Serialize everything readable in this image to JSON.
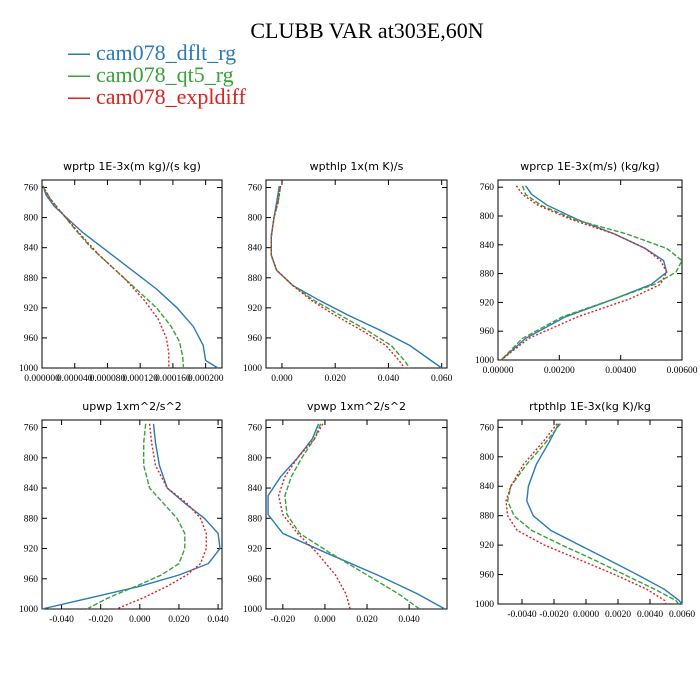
{
  "title": "CLUBB VAR at303E,60N",
  "legend": [
    {
      "label": "cam078_dflt_rg",
      "color": "#2a7ab8"
    },
    {
      "label": "cam078_qt5_rg",
      "color": "#3aa13a"
    },
    {
      "label": "cam078_expldiff",
      "color": "#e02020"
    }
  ],
  "chart_data": [
    {
      "type": "line",
      "title": "wprtp  1E-3x(m kg)/(s kg)",
      "xlim": [
        0.0,
        0.00022
      ],
      "ylim": [
        750,
        1000
      ],
      "xticks": [
        0.0,
        4e-05,
        8e-05,
        0.00012,
        0.00016,
        0.0002
      ],
      "xticklabels": [
        "0.000000",
        "0.000040",
        "0.000080",
        "0.000120",
        "0.000160",
        "0.000200"
      ],
      "yticks": [
        760,
        800,
        840,
        880,
        920,
        960,
        1000
      ],
      "series": [
        {
          "name": "cam078_dflt_rg",
          "x": [
            1.5e-06,
            5e-06,
            1.5e-05,
            3e-05,
            5e-05,
            8e-05,
            0.00011,
            0.00014,
            0.000165,
            0.000185,
            0.000197,
            0.0002,
            0.000215
          ],
          "y": [
            758,
            770,
            785,
            800,
            820,
            845,
            870,
            895,
            920,
            945,
            970,
            990,
            1000
          ]
        },
        {
          "name": "cam078_qt5_rg",
          "x": [
            1e-06,
            1e-05,
            2.5e-05,
            4e-05,
            6e-05,
            9e-05,
            0.000115,
            0.00014,
            0.000158,
            0.000168,
            0.000172,
            0.000173
          ],
          "y": [
            758,
            775,
            795,
            815,
            840,
            870,
            895,
            920,
            945,
            965,
            985,
            1000
          ]
        },
        {
          "name": "cam078_expldiff",
          "x": [
            1e-06,
            1e-05,
            2.5e-05,
            4.5e-05,
            7e-05,
            0.0001,
            0.000125,
            0.000142,
            0.000152,
            0.000155,
            0.000155
          ],
          "y": [
            758,
            775,
            795,
            820,
            850,
            880,
            910,
            935,
            960,
            980,
            1000
          ]
        }
      ]
    },
    {
      "type": "line",
      "title": "wpthlp  1x(m K)/s",
      "xlim": [
        -0.006,
        0.062
      ],
      "ylim": [
        750,
        1000
      ],
      "xticks": [
        0.0,
        0.02,
        0.04,
        0.06
      ],
      "xticklabels": [
        "0.000",
        "0.020",
        "0.040",
        "0.060"
      ],
      "yticks": [
        760,
        800,
        840,
        880,
        920,
        960,
        1000
      ],
      "series": [
        {
          "name": "cam078_dflt_rg",
          "x": [
            -0.001,
            -0.002,
            -0.003,
            -0.004,
            -0.004,
            -0.002,
            0.004,
            0.014,
            0.025,
            0.037,
            0.048,
            0.056,
            0.06
          ],
          "y": [
            758,
            780,
            800,
            825,
            850,
            870,
            890,
            910,
            930,
            950,
            970,
            990,
            1000
          ]
        },
        {
          "name": "cam078_qt5_rg",
          "x": [
            -0.0005,
            -0.0015,
            -0.003,
            -0.004,
            -0.004,
            -0.002,
            0.004,
            0.012,
            0.022,
            0.032,
            0.041,
            0.046,
            0.048
          ],
          "y": [
            758,
            780,
            800,
            825,
            850,
            870,
            890,
            910,
            930,
            950,
            970,
            990,
            1000
          ]
        },
        {
          "name": "cam078_expldiff",
          "x": [
            -0.0005,
            -0.0015,
            -0.003,
            -0.004,
            -0.004,
            -0.002,
            0.004,
            0.011,
            0.02,
            0.03,
            0.039,
            0.044,
            0.046
          ],
          "y": [
            758,
            780,
            800,
            825,
            850,
            870,
            890,
            910,
            930,
            950,
            970,
            990,
            1000
          ]
        }
      ]
    },
    {
      "type": "line",
      "title": "wprcp  1E-3x(m/s) (kg/kg)",
      "xlim": [
        0.0,
        0.006
      ],
      "ylim": [
        750,
        1000
      ],
      "xticks": [
        0.0,
        0.002,
        0.004,
        0.006
      ],
      "xticklabels": [
        "0.00000",
        "0.00200",
        "0.00400",
        "0.00600"
      ],
      "yticks": [
        760,
        800,
        840,
        880,
        920,
        960,
        1000
      ],
      "series": [
        {
          "name": "cam078_dflt_rg",
          "x": [
            0.0009,
            0.0011,
            0.0016,
            0.0026,
            0.0038,
            0.0048,
            0.0054,
            0.0055,
            0.005,
            0.0038,
            0.0022,
            0.0009,
            0.0001
          ],
          "y": [
            758,
            770,
            785,
            805,
            825,
            845,
            862,
            878,
            895,
            915,
            940,
            970,
            1000
          ]
        },
        {
          "name": "cam078_qt5_rg",
          "x": [
            0.0008,
            0.0009,
            0.0014,
            0.0025,
            0.0042,
            0.0055,
            0.006,
            0.0058,
            0.0051,
            0.0038,
            0.0021,
            0.0008,
            0.0001
          ],
          "y": [
            758,
            770,
            785,
            805,
            825,
            845,
            862,
            878,
            895,
            915,
            940,
            970,
            1000
          ]
        },
        {
          "name": "cam078_expldiff",
          "x": [
            0.0006,
            0.0008,
            0.0013,
            0.0024,
            0.0038,
            0.0048,
            0.0053,
            0.0055,
            0.0053,
            0.0043,
            0.0026,
            0.001,
            0.0001
          ],
          "y": [
            758,
            770,
            785,
            805,
            825,
            845,
            862,
            878,
            895,
            915,
            940,
            970,
            1000
          ]
        }
      ]
    },
    {
      "type": "line",
      "title": "upwp  1xm^2/s^2",
      "xlim": [
        -0.05,
        0.042
      ],
      "ylim": [
        750,
        1000
      ],
      "xticks": [
        -0.04,
        -0.02,
        0.0,
        0.02,
        0.04
      ],
      "xticklabels": [
        "-0.040",
        "-0.020",
        "0.000",
        "0.020",
        "0.040"
      ],
      "yticks": [
        760,
        800,
        840,
        880,
        920,
        960,
        1000
      ],
      "series": [
        {
          "name": "cam078_dflt_rg",
          "x": [
            0.007,
            0.008,
            0.01,
            0.014,
            0.023,
            0.033,
            0.04,
            0.041,
            0.035,
            0.02,
            0.0,
            -0.025,
            -0.05
          ],
          "y": [
            755,
            780,
            810,
            840,
            860,
            880,
            900,
            920,
            940,
            955,
            970,
            985,
            1000
          ]
        },
        {
          "name": "cam078_qt5_rg",
          "x": [
            0.003,
            0.002,
            0.002,
            0.005,
            0.012,
            0.019,
            0.023,
            0.023,
            0.02,
            0.011,
            -0.002,
            -0.016,
            -0.027
          ],
          "y": [
            755,
            780,
            810,
            840,
            860,
            880,
            900,
            920,
            940,
            955,
            970,
            985,
            1000
          ]
        },
        {
          "name": "cam078_expldiff",
          "x": [
            0.005,
            0.006,
            0.008,
            0.014,
            0.024,
            0.031,
            0.034,
            0.034,
            0.031,
            0.024,
            0.014,
            0.002,
            -0.012
          ],
          "y": [
            755,
            780,
            810,
            840,
            860,
            880,
            900,
            920,
            940,
            955,
            970,
            985,
            1000
          ]
        }
      ]
    },
    {
      "type": "line",
      "title": "vpwp  1xm^2/s^2",
      "xlim": [
        -0.028,
        0.058
      ],
      "ylim": [
        750,
        1000
      ],
      "xticks": [
        -0.02,
        0.0,
        0.02,
        0.04
      ],
      "xticklabels": [
        "-0.020",
        "0.000",
        "0.020",
        "0.040"
      ],
      "yticks": [
        760,
        800,
        840,
        880,
        920,
        960,
        1000
      ],
      "series": [
        {
          "name": "cam078_dflt_rg",
          "x": [
            -0.003,
            -0.006,
            -0.013,
            -0.021,
            -0.027,
            -0.027,
            -0.02,
            0.0,
            0.025,
            0.044,
            0.057
          ],
          "y": [
            755,
            775,
            800,
            825,
            850,
            875,
            900,
            925,
            955,
            980,
            1000
          ]
        },
        {
          "name": "cam078_qt5_rg",
          "x": [
            -0.002,
            -0.005,
            -0.011,
            -0.016,
            -0.019,
            -0.018,
            -0.012,
            0.002,
            0.02,
            0.035,
            0.045
          ],
          "y": [
            755,
            775,
            800,
            825,
            850,
            875,
            900,
            925,
            955,
            980,
            1000
          ]
        },
        {
          "name": "cam078_expldiff",
          "x": [
            -0.001,
            -0.005,
            -0.013,
            -0.019,
            -0.022,
            -0.02,
            -0.013,
            -0.004,
            0.005,
            0.01,
            0.012
          ],
          "y": [
            755,
            775,
            800,
            825,
            850,
            875,
            900,
            925,
            955,
            980,
            1000
          ]
        }
      ]
    },
    {
      "type": "line",
      "title": "rtpthlp  1E-3x(kg K)/kg",
      "xlim": [
        -0.0055,
        0.006
      ],
      "ylim": [
        750,
        1000
      ],
      "xticks": [
        -0.004,
        -0.002,
        0.0,
        0.002,
        0.004,
        0.006
      ],
      "xticklabels": [
        "-0.0040",
        "-0.0020",
        "0.0000",
        "0.0020",
        "0.0040",
        "0.0060"
      ],
      "yticks": [
        760,
        800,
        840,
        880,
        920,
        960,
        1000
      ],
      "series": [
        {
          "name": "cam078_dflt_rg",
          "x": [
            -0.0017,
            -0.0023,
            -0.0031,
            -0.0036,
            -0.0037,
            -0.0033,
            -0.0022,
            -0.0004,
            0.0014,
            0.0032,
            0.0049,
            0.0058,
            0.006
          ],
          "y": [
            755,
            780,
            810,
            840,
            860,
            880,
            900,
            920,
            940,
            960,
            980,
            995,
            1000
          ]
        },
        {
          "name": "cam078_qt5_rg",
          "x": [
            -0.0016,
            -0.0025,
            -0.0037,
            -0.0047,
            -0.0049,
            -0.0045,
            -0.0034,
            -0.0015,
            0.0005,
            0.0024,
            0.0043,
            0.0056,
            0.0058
          ],
          "y": [
            755,
            780,
            810,
            840,
            860,
            880,
            900,
            920,
            940,
            960,
            980,
            995,
            1000
          ]
        },
        {
          "name": "cam078_expldiff",
          "x": [
            -0.0018,
            -0.0027,
            -0.0039,
            -0.0047,
            -0.005,
            -0.0049,
            -0.0043,
            -0.0026,
            -0.0004,
            0.0018,
            0.0038,
            0.0049,
            0.005
          ],
          "y": [
            755,
            780,
            810,
            840,
            860,
            880,
            900,
            920,
            940,
            960,
            980,
            995,
            1000
          ]
        }
      ]
    }
  ]
}
